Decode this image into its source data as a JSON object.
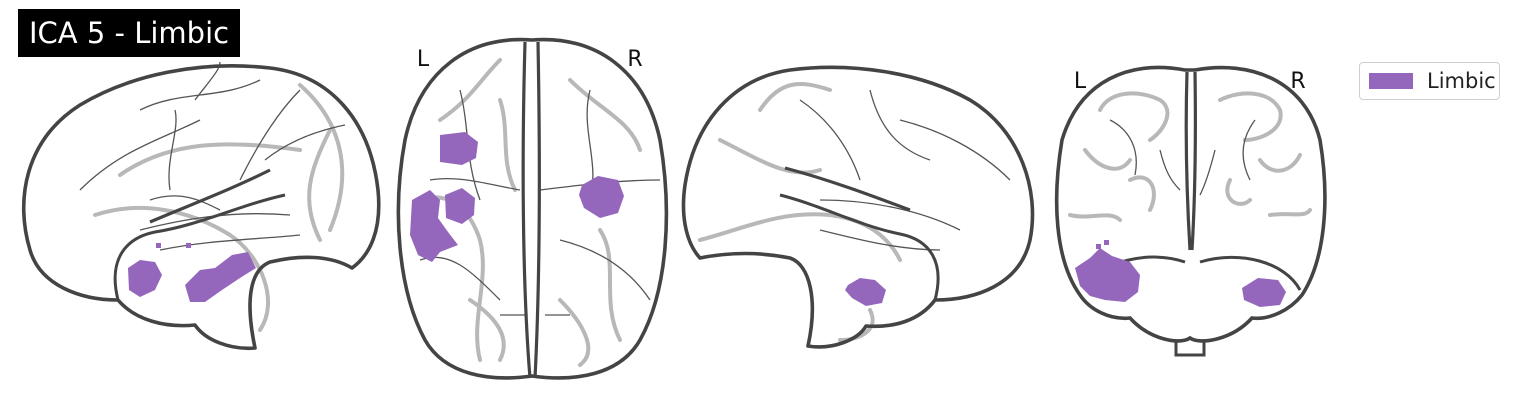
{
  "title": "ICA 5 - Limbic",
  "views": {
    "axial": {
      "left_label": "L",
      "right_label": "R"
    },
    "coronal": {
      "left_label": "L",
      "right_label": "R"
    }
  },
  "legend": {
    "label": "Limbic",
    "color": "#9467bd"
  },
  "colors": {
    "outline": "#444444",
    "sulci": "#b8b8b8",
    "region": "#9467bd"
  }
}
